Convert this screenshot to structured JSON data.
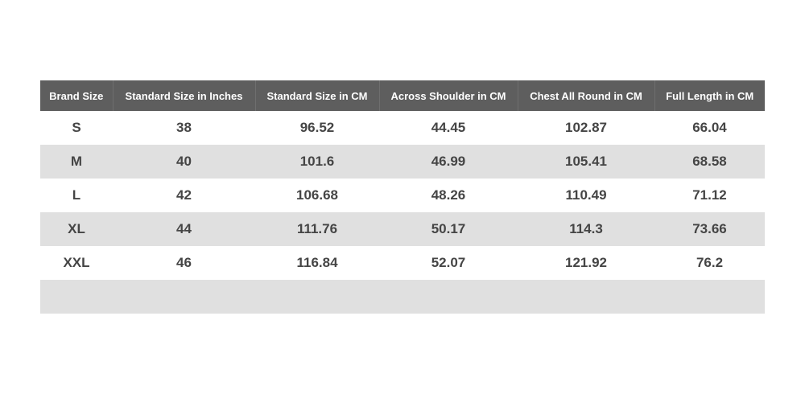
{
  "table": {
    "headers": [
      "Brand Size",
      "Standard Size in Inches",
      "Standard Size in CM",
      "Across Shoulder in CM",
      "Chest All Round in CM",
      "Full Length in CM"
    ],
    "rows": [
      [
        "S",
        "38",
        "96.52",
        "44.45",
        "102.87",
        "66.04"
      ],
      [
        "M",
        "40",
        "101.6",
        "46.99",
        "105.41",
        "68.58"
      ],
      [
        "L",
        "42",
        "106.68",
        "48.26",
        "110.49",
        "71.12"
      ],
      [
        "XL",
        "44",
        "111.76",
        "50.17",
        "114.3",
        "73.66"
      ],
      [
        "XXL",
        "46",
        "116.84",
        "52.07",
        "121.92",
        "76.2"
      ]
    ]
  }
}
